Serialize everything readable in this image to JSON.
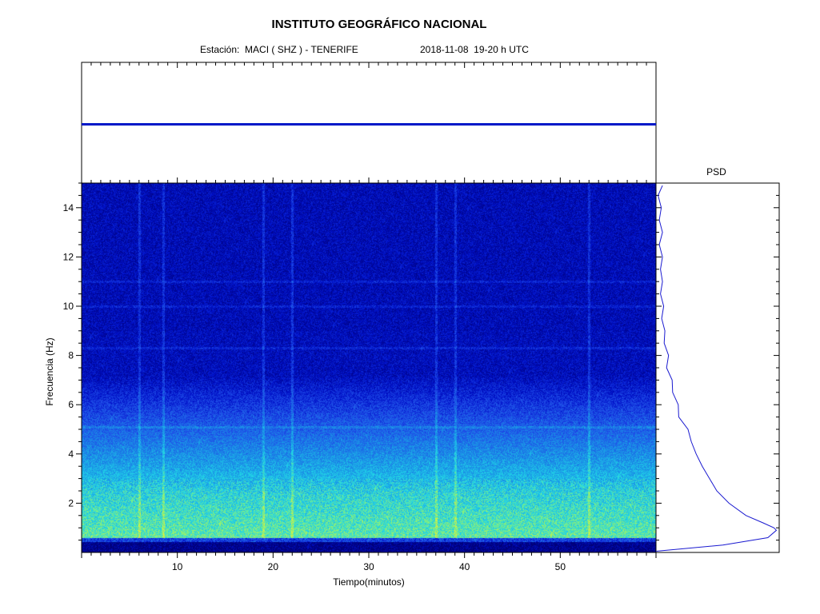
{
  "header": {
    "title": "INSTITUTO GEOGRÁFICO NACIONAL",
    "station": "Estación:  MACI ( SHZ ) - TENERIFE",
    "date_range": "2018-11-08  19-20 h UTC"
  },
  "colors": {
    "trace": "#0018c8",
    "psd_line": "#1a1ad0",
    "colormap": [
      "#00007a",
      "#0010c8",
      "#1f4de8",
      "#1a8fe6",
      "#20d4e8",
      "#80f080",
      "#f4f02a"
    ]
  },
  "chart_data": [
    {
      "type": "line",
      "name": "seismogram",
      "x": [
        0,
        60
      ],
      "y": [
        0,
        0
      ],
      "xlim": [
        0,
        60
      ],
      "title": "",
      "xlabel": "",
      "ylabel": ""
    },
    {
      "type": "heatmap",
      "name": "spectrogram",
      "xlabel": "Tiempo(minutos)",
      "ylabel": "Frecuencia  (Hz)",
      "xlim": [
        0,
        60
      ],
      "ylim": [
        0,
        15
      ],
      "x_ticks": [
        10,
        20,
        30,
        40,
        50
      ],
      "y_ticks": [
        2,
        4,
        6,
        8,
        10,
        12,
        14
      ],
      "max_energy_band_hz": [
        0.5,
        2.5
      ],
      "vertical_streaks_min": [
        6,
        8.5,
        19,
        22,
        37,
        39,
        53
      ],
      "horizontal_lines_hz": [
        5.1,
        8.3,
        10.0,
        11.0
      ]
    },
    {
      "type": "line",
      "name": "psd",
      "title": "PSD",
      "y_axis": "frequency_hz",
      "ylim": [
        0,
        15
      ],
      "xlim": [
        0,
        1
      ],
      "freq": [
        0.05,
        0.3,
        0.6,
        0.9,
        1.0,
        1.2,
        1.5,
        2.0,
        2.5,
        3.0,
        3.5,
        4.0,
        4.5,
        5.0,
        5.5,
        6.0,
        6.5,
        7.0,
        7.5,
        8.0,
        8.5,
        9.0,
        9.5,
        10.0,
        10.5,
        11.0,
        11.5,
        12.0,
        12.5,
        13.0,
        13.5,
        14.0,
        14.5,
        14.9
      ],
      "power": [
        0.0,
        0.55,
        0.92,
        0.99,
        0.97,
        0.88,
        0.74,
        0.6,
        0.5,
        0.44,
        0.38,
        0.33,
        0.29,
        0.25,
        0.2,
        0.17,
        0.15,
        0.12,
        0.1,
        0.09,
        0.08,
        0.06,
        0.06,
        0.05,
        0.05,
        0.04,
        0.05,
        0.04,
        0.04,
        0.04,
        0.04,
        0.03,
        0.03,
        0.04
      ]
    }
  ]
}
